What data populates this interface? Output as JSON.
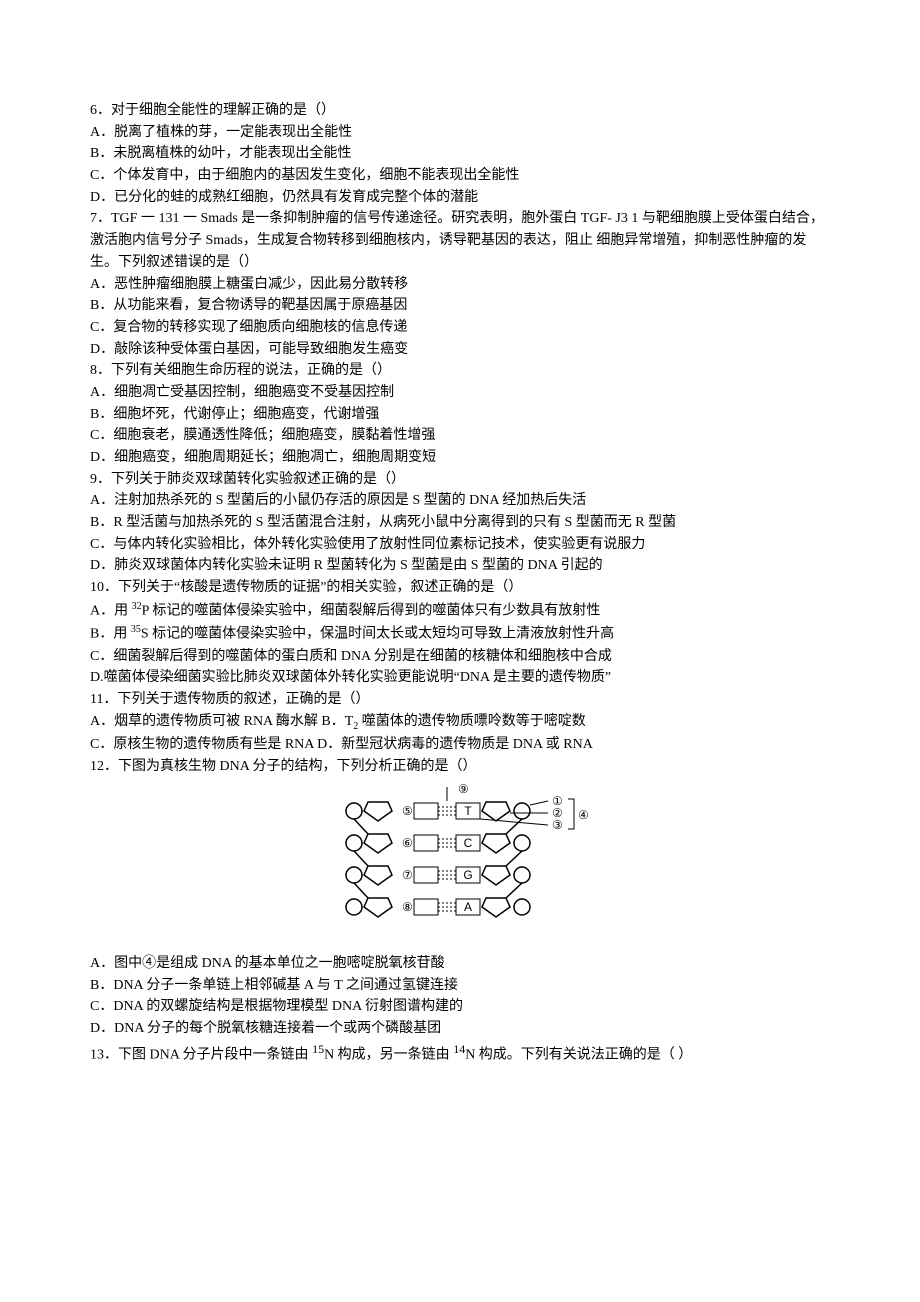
{
  "q6": {
    "stem": "6．对于细胞全能性的理解正确的是（）",
    "A": "A．脱离了植株的芽，一定能表现出全能性",
    "B": "B．未脱离植株的幼叶，才能表现出全能性",
    "C": "C．个体发育中，由于细胞内的基因发生变化，细胞不能表现出全能性",
    "D": "D．已分化的蛙的成熟红细胞，仍然具有发育成完整个体的潜能"
  },
  "q7": {
    "stem1": "7．TGF 一 131 一 Smads 是一条抑制肿瘤的信号传递途径。研究表明，胞外蛋白 TGF- J3 1 与靶细胞膜上受体蛋白结合，激活胞内信号分子 Smads，生成复合物转移到细胞核内，诱导靶基因的表达，阻止 细胞异常增殖，抑制恶性肿瘤的发生。下列叙述错误的是（）",
    "A": "A．恶性肿瘤细胞膜上糖蛋白减少，因此易分散转移",
    "B": "B．从功能来看，复合物诱导的靶基因属于原癌基因",
    "C": "C．复合物的转移实现了细胞质向细胞核的信息传递",
    "D": "D．敲除该种受体蛋白基因，可能导致细胞发生癌变"
  },
  "q8": {
    "stem": "8．下列有关细胞生命历程的说法，正确的是（）",
    "A": "A．细胞凋亡受基因控制，细胞癌变不受基因控制",
    "B": "B．细胞坏死，代谢停止；细胞癌变，代谢增强",
    "C": "C．细胞衰老，膜通透性降低；细胞癌变，膜黏着性增强",
    "D": "D．细胞癌变，细胞周期延长；细胞凋亡，细胞周期变短"
  },
  "q9": {
    "stem": "9．下列关于肺炎双球菌转化实验叙述正确的是（）",
    "A": "A．注射加热杀死的 S 型菌后的小鼠仍存活的原因是 S 型菌的 DNA 经加热后失活",
    "B": "B．R 型活菌与加热杀死的 S 型活菌混合注射，从病死小鼠中分离得到的只有 S 型菌而无 R 型菌",
    "C": "C．与体内转化实验相比，体外转化实验使用了放射性同位素标记技术，使实验更有说服力",
    "D": "D．肺炎双球菌体内转化实验未证明 R 型菌转化为 S 型菌是由 S 型菌的 DNA 引起的"
  },
  "q10": {
    "stem": "10．下列关于“核酸是遗传物质的证据”的相关实验，叙述正确的是（）",
    "A_pre": "A．用 ",
    "A_sup": "32",
    "A_post": "P 标记的噬菌体侵染实验中，细菌裂解后得到的噬菌体只有少数具有放射性",
    "B_pre": "B．用 ",
    "B_sup": "35",
    "B_post": "S 标记的噬菌体侵染实验中，保温时间太长或太短均可导致上清液放射性升高",
    "C": "C．细菌裂解后得到的噬菌体的蛋白质和 DNA 分别是在细菌的核糖体和细胞核中合成",
    "D": "D.噬菌体侵染细菌实验比肺炎双球菌体外转化实验更能说明“DNA 是主要的遗传物质”"
  },
  "q11": {
    "stem": "11．下列关于遗传物质的叙述，正确的是（）",
    "AB_pre": "A．烟草的遗传物质可被 RNA 酶水解 B．T",
    "AB_sub": "2",
    "AB_post": " 噬菌体的遗传物质嘌呤数等于嘧啶数",
    "CD": "C．原核生物的遗传物质有些是 RNA D．新型冠状病毒的遗传物质是 DNA 或 RNA"
  },
  "q12": {
    "stem": "12．下图为真核生物 DNA 分子的结构，下列分析正确的是（）",
    "A": "A．图中④是组成 DNA 的基本单位之一胞嘧啶脱氧核苷酸",
    "B": "B．DNA 分子一条单链上相邻碱基 A 与 T 之间通过氢键连接",
    "C": "C．DNA 的双螺旋结构是根据物理模型 DNA 衍射图谱构建的",
    "D": "D．DNA 分子的每个脱氧核糖连接着一个或两个磷酸基团"
  },
  "q13": {
    "pre": "13．下图 DNA 分子片段中一条链由 ",
    "s1": "15",
    "mid": "N 构成，另一条链由 ",
    "s2": "14",
    "post": "N 构成。下列有关说法正确的是（  ）"
  },
  "diagram": {
    "labels": [
      "⑤",
      "⑥",
      "⑦",
      "⑧"
    ],
    "bases": [
      "T",
      "C",
      "G",
      "A"
    ],
    "top": "⑨",
    "right": [
      "①",
      "②",
      "③"
    ],
    "bracket": "④",
    "stroke": "#000000",
    "fill": "#ffffff",
    "font_size": 12
  }
}
